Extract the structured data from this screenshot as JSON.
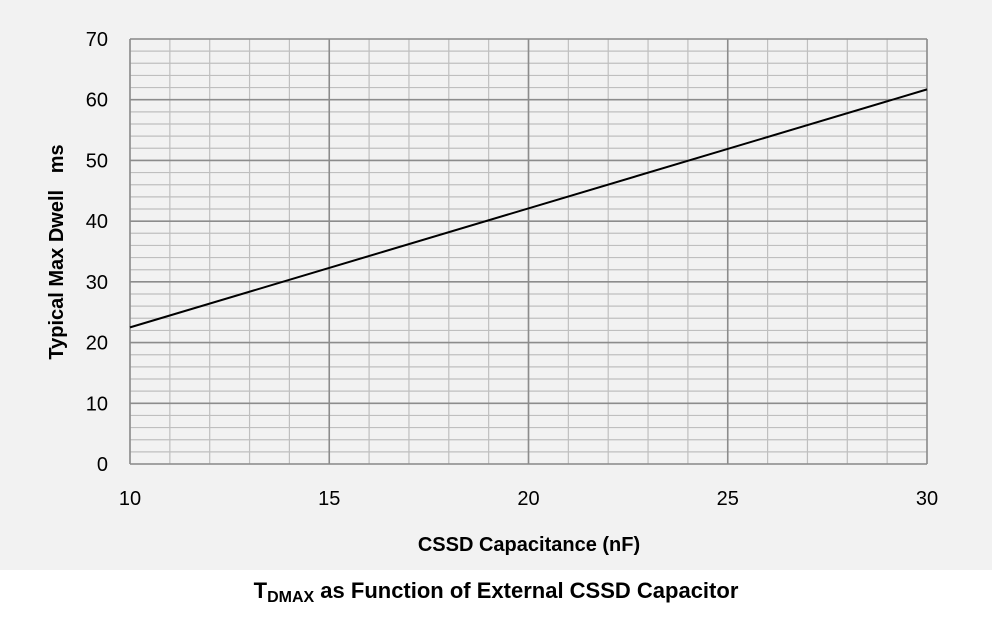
{
  "chart_data": {
    "type": "line",
    "xlabel": "CSSD Capacitance (nF)",
    "ylabel": "Typical Max Dwell   ms",
    "xlim": [
      10,
      30
    ],
    "ylim": [
      0,
      70
    ],
    "x_major_ticks": [
      10,
      15,
      20,
      25,
      30
    ],
    "y_major_ticks": [
      0,
      10,
      20,
      30,
      40,
      50,
      60,
      70
    ],
    "x_minor_step": 1,
    "y_minor_step": 2,
    "grid": true,
    "series": [
      {
        "x": [
          10,
          30
        ],
        "y": [
          22.5,
          61.7
        ]
      }
    ],
    "caption": {
      "prefix": "T",
      "subscript": "DMAX",
      "suffix": " as Function of External CSSD Capacitor"
    },
    "colors": {
      "line": "#000000",
      "minor_grid": "#bfbfbf",
      "major_grid": "#8c8c8c",
      "background": "#f2f2f2"
    }
  }
}
